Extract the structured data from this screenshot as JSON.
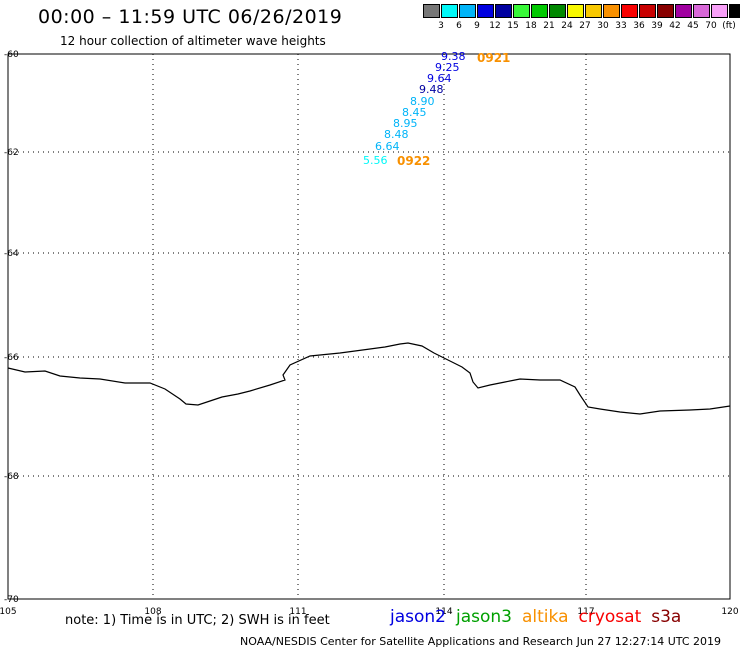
{
  "header": {
    "title": "00:00 – 11:59 UTC 06/26/2019",
    "subtitle": "12 hour collection of altimeter wave heights"
  },
  "legend": {
    "colors": [
      "#777777",
      "#00f8f8",
      "#00b4f8",
      "#0000e0",
      "#0000a0",
      "#38f838",
      "#00c800",
      "#008800",
      "#f8f800",
      "#f8c800",
      "#f89000",
      "#f80000",
      "#c80000",
      "#880000",
      "#a000a0",
      "#d868d8",
      "#f8a0f8",
      "#000000"
    ],
    "labels": [
      "3",
      "6",
      "9",
      "12",
      "15",
      "18",
      "21",
      "24",
      "27",
      "30",
      "33",
      "36",
      "39",
      "42",
      "45",
      "70",
      "(ft)"
    ]
  },
  "map": {
    "lat_labels": [
      "-60",
      "-62",
      "-64",
      "-66",
      "-68",
      "-70"
    ],
    "lon_labels": [
      "105",
      "108",
      "111",
      "114",
      "117",
      "120"
    ],
    "points": [
      {
        "value": "9.38",
        "color": "#0000e0"
      },
      {
        "value": "9.25",
        "color": "#0000e0"
      },
      {
        "value": "9.64",
        "color": "#0000e0"
      },
      {
        "value": "9.48",
        "color": "#0000a0"
      },
      {
        "value": "8.90",
        "color": "#00b4f8"
      },
      {
        "value": "8.45",
        "color": "#00b4f8"
      },
      {
        "value": "8.95",
        "color": "#00b4f8"
      },
      {
        "value": "8.48",
        "color": "#00b4f8"
      },
      {
        "value": "6.64",
        "color": "#00b4f8"
      },
      {
        "value": "5.56",
        "color": "#00f8f8"
      }
    ],
    "times": [
      {
        "value": "0921",
        "color": "#f89000"
      },
      {
        "value": "0922",
        "color": "#f89000"
      }
    ]
  },
  "footer": {
    "note": "note: 1) Time is in UTC; 2) SWH is in feet",
    "satellites": [
      {
        "name": "jason2",
        "color": "#0000e0"
      },
      {
        "name": "jason3",
        "color": "#00a000"
      },
      {
        "name": "altika",
        "color": "#f89000"
      },
      {
        "name": "cryosat",
        "color": "#f80000"
      },
      {
        "name": "s3a",
        "color": "#880000"
      }
    ],
    "credit": "NOAA/NESDIS Center for Satellite Applications and Research    Jun 27 12:27:14 UTC 2019"
  }
}
